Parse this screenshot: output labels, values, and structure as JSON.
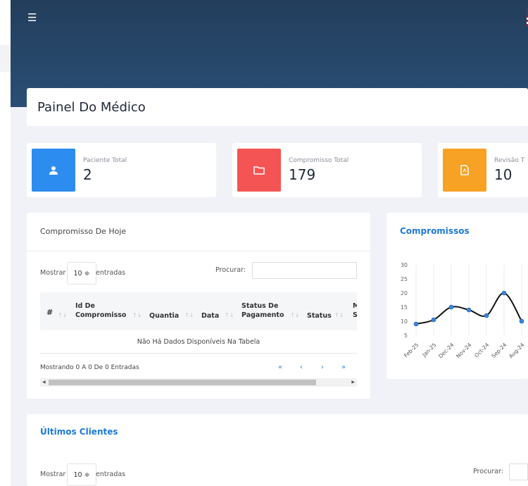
{
  "header": {
    "menu_icon": "hamburger-icon",
    "flag_icon": "us-flag-icon"
  },
  "page": {
    "title": "Painel Do Médico"
  },
  "stats": [
    {
      "label": "Paciente Total",
      "value": "2",
      "icon": "user-icon",
      "color": "#2d8cf0"
    },
    {
      "label": "Compromisso Total",
      "value": "179",
      "icon": "folder-icon",
      "color": "#f55454"
    },
    {
      "label": "Revisão T",
      "value": "10",
      "icon": "pdf-file-icon",
      "color": "#f7a224"
    }
  ],
  "appointments": {
    "title": "Compromisso De Hoje",
    "length_label_before": "Mostrar",
    "length_value": "10",
    "length_label_after": "entradas",
    "search_label": "Procurar:",
    "columns": [
      "#",
      "Id De Compromisso",
      "Quantia",
      "Data",
      "Status De Pagamento",
      "Status",
      "M S"
    ],
    "empty_text": "Não Há Dados Disponíveis Na Tabela",
    "info": "Mostrando 0 A 0 De 0 Entradas",
    "pagination": [
      "«",
      "‹",
      "›",
      "»"
    ]
  },
  "chart_data": {
    "type": "line",
    "title": "Compromissos",
    "categories": [
      "Feb-25",
      "Jan-25",
      "Dec-24",
      "Nov-24",
      "Oct-24",
      "Sep-24",
      "Aug-24"
    ],
    "values": [
      9,
      10.5,
      15,
      14,
      12,
      20,
      10
    ],
    "ylim": [
      5,
      30
    ],
    "yticks": [
      5,
      10,
      15,
      20,
      25,
      30
    ],
    "grid": true
  },
  "clients": {
    "title": "Últimos Clientes",
    "length_label_before": "Mostrar",
    "length_value": "10",
    "length_label_after": "entradas",
    "search_label": "Procurar:"
  }
}
